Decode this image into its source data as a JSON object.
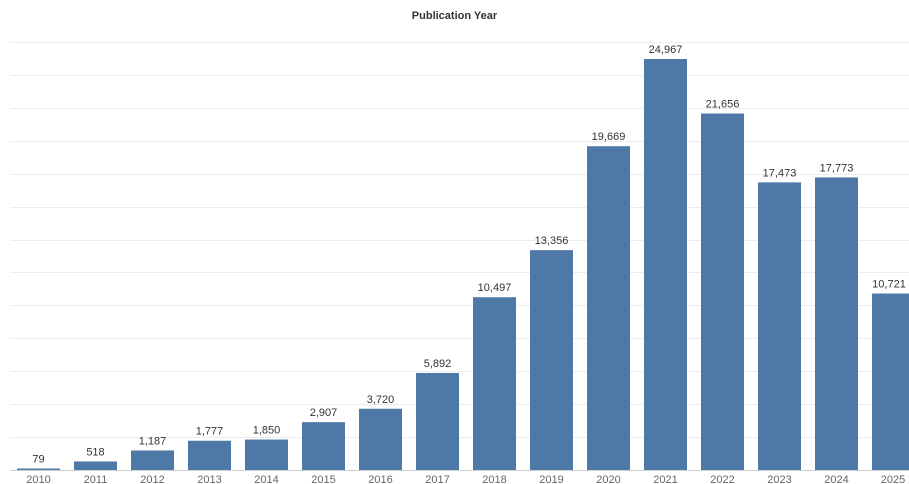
{
  "chart_data": {
    "type": "bar",
    "title": "Publication Year",
    "xlabel": "",
    "ylabel": "",
    "categories": [
      "2010",
      "2011",
      "2012",
      "2013",
      "2014",
      "2015",
      "2016",
      "2017",
      "2018",
      "2019",
      "2020",
      "2021",
      "2022",
      "2023",
      "2024",
      "2025"
    ],
    "values": [
      79,
      518,
      1187,
      1777,
      1850,
      2907,
      3720,
      5892,
      10497,
      13356,
      19669,
      24967,
      21656,
      17473,
      17773,
      10721
    ],
    "value_labels": [
      "79",
      "518",
      "1,187",
      "1,777",
      "1,850",
      "2,907",
      "3,720",
      "5,892",
      "10,497",
      "13,356",
      "19,669",
      "24,967",
      "21,656",
      "17,473",
      "17,773",
      "10,721"
    ],
    "ylim": [
      0,
      26000
    ],
    "grid": true,
    "legend": "none",
    "bar_color": "#4e79a7"
  }
}
